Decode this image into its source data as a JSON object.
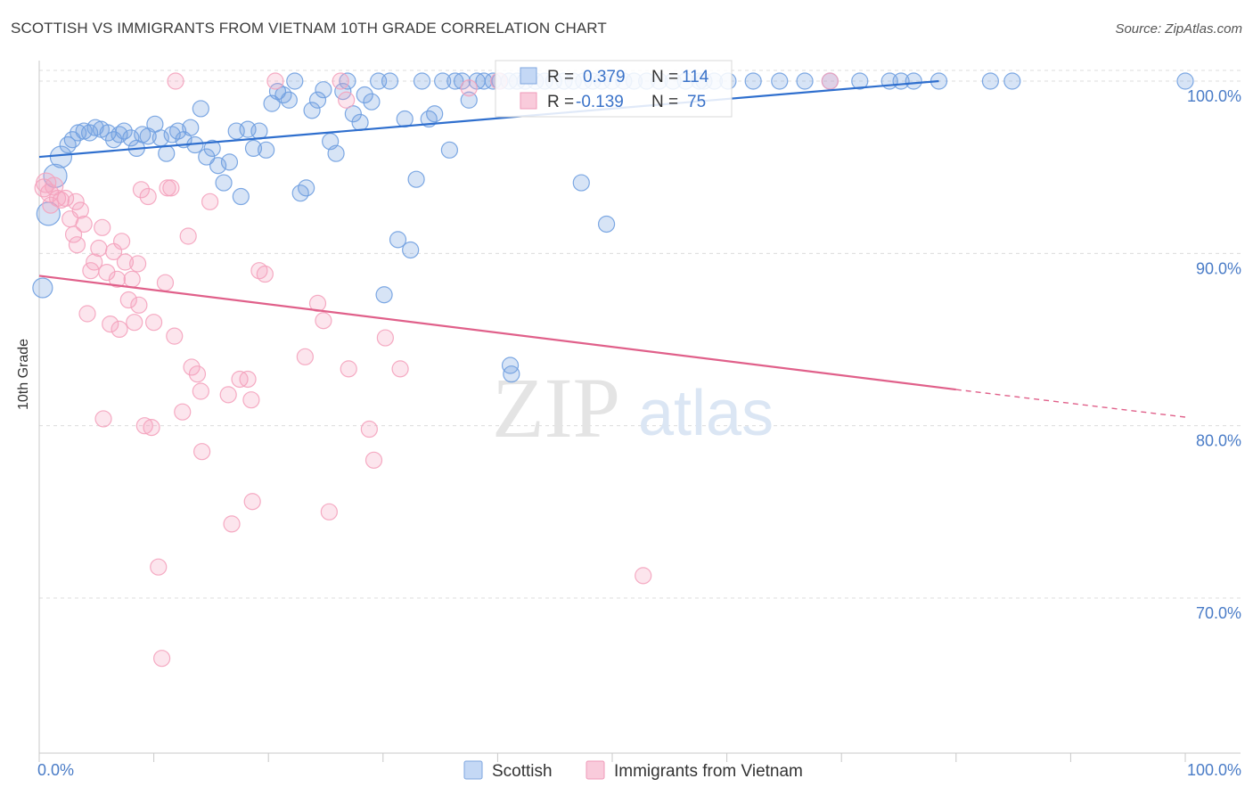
{
  "title": "SCOTTISH VS IMMIGRANTS FROM VIETNAM 10TH GRADE CORRELATION CHART",
  "source": "Source: ZipAtlas.com",
  "watermark": {
    "zip": "ZIP",
    "atlas": "atlas"
  },
  "chart_data": {
    "type": "scatter",
    "title": "SCOTTISH VS IMMIGRANTS FROM VIETNAM 10TH GRADE CORRELATION CHART",
    "xlabel": "",
    "ylabel": "10th Grade",
    "xlim": [
      0,
      100
    ],
    "ylim": [
      61,
      101.5
    ],
    "x_tick_labels": [
      "0.0%",
      "100.0%"
    ],
    "y_ticks": [
      70,
      80,
      90,
      100
    ],
    "y_tick_labels": [
      "70.0%",
      "80.0%",
      "90.0%",
      "100.0%"
    ],
    "grid": true,
    "legend_position": "bottom",
    "stats_box": [
      {
        "r_label": "R =",
        "r_value": "0.379",
        "n_label": "N =",
        "n_value": "114"
      },
      {
        "r_label": "R =",
        "r_value": "-0.139",
        "n_label": "N =",
        "n_value": "75"
      }
    ],
    "series": [
      {
        "name": "Scottish",
        "color": "#6f9fe0",
        "line_color": "#2f6fce",
        "trend": {
          "x0": 0,
          "y0": 95.6,
          "x1": 78.5,
          "y1": 100.0,
          "dashed_to": null
        },
        "points": [
          [
            0.3,
            88.0
          ],
          [
            0.8,
            92.3
          ],
          [
            1.4,
            94.5
          ],
          [
            1.9,
            95.6
          ],
          [
            2.5,
            96.3
          ],
          [
            2.9,
            96.6
          ],
          [
            3.4,
            97.0
          ],
          [
            3.9,
            97.1
          ],
          [
            4.4,
            97.0
          ],
          [
            4.9,
            97.3
          ],
          [
            5.4,
            97.2
          ],
          [
            6.0,
            97.0
          ],
          [
            6.5,
            96.6
          ],
          [
            7.0,
            96.9
          ],
          [
            7.4,
            97.1
          ],
          [
            8.0,
            96.7
          ],
          [
            8.5,
            96.1
          ],
          [
            9.0,
            96.9
          ],
          [
            9.5,
            96.8
          ],
          [
            10.1,
            97.5
          ],
          [
            10.6,
            96.7
          ],
          [
            11.1,
            95.8
          ],
          [
            11.6,
            96.9
          ],
          [
            12.1,
            97.1
          ],
          [
            12.6,
            96.6
          ],
          [
            13.2,
            97.3
          ],
          [
            13.6,
            96.3
          ],
          [
            14.1,
            98.4
          ],
          [
            14.6,
            95.6
          ],
          [
            15.1,
            96.1
          ],
          [
            15.6,
            95.1
          ],
          [
            16.1,
            94.1
          ],
          [
            16.6,
            95.3
          ],
          [
            17.2,
            97.1
          ],
          [
            17.6,
            93.3
          ],
          [
            18.2,
            97.2
          ],
          [
            18.7,
            96.1
          ],
          [
            19.2,
            97.1
          ],
          [
            19.8,
            96.0
          ],
          [
            20.3,
            98.7
          ],
          [
            20.8,
            99.4
          ],
          [
            21.3,
            99.2
          ],
          [
            21.8,
            98.9
          ],
          [
            22.3,
            100.0
          ],
          [
            22.8,
            93.5
          ],
          [
            23.3,
            93.8
          ],
          [
            23.8,
            98.3
          ],
          [
            24.3,
            98.9
          ],
          [
            24.8,
            99.5
          ],
          [
            25.4,
            96.5
          ],
          [
            25.9,
            95.8
          ],
          [
            26.5,
            99.4
          ],
          [
            26.9,
            100.0
          ],
          [
            27.4,
            98.1
          ],
          [
            28.0,
            97.6
          ],
          [
            28.4,
            99.2
          ],
          [
            29.0,
            98.8
          ],
          [
            29.6,
            100.0
          ],
          [
            30.1,
            87.6
          ],
          [
            30.6,
            100.0
          ],
          [
            31.3,
            90.8
          ],
          [
            31.9,
            97.8
          ],
          [
            32.4,
            90.2
          ],
          [
            32.9,
            94.3
          ],
          [
            33.4,
            100.0
          ],
          [
            34.0,
            97.8
          ],
          [
            34.5,
            98.1
          ],
          [
            35.2,
            100.0
          ],
          [
            35.8,
            96.0
          ],
          [
            36.3,
            100.0
          ],
          [
            36.9,
            100.0
          ],
          [
            37.5,
            98.9
          ],
          [
            38.2,
            100.0
          ],
          [
            38.8,
            100.0
          ],
          [
            39.6,
            100.0
          ],
          [
            40.2,
            100.0
          ],
          [
            41.0,
            100.0
          ],
          [
            41.7,
            100.0
          ],
          [
            41.1,
            83.5
          ],
          [
            41.2,
            83.0
          ],
          [
            42.4,
            100.0
          ],
          [
            43.3,
            100.0
          ],
          [
            44.1,
            100.0
          ],
          [
            44.9,
            100.0
          ],
          [
            45.8,
            100.0
          ],
          [
            46.6,
            100.0
          ],
          [
            47.5,
            100.0
          ],
          [
            47.3,
            94.1
          ],
          [
            48.3,
            100.0
          ],
          [
            49.1,
            100.0
          ],
          [
            49.5,
            91.7
          ],
          [
            50.0,
            100.0
          ],
          [
            51.0,
            100.0
          ],
          [
            51.9,
            100.0
          ],
          [
            53.0,
            100.0
          ],
          [
            54.1,
            100.0
          ],
          [
            55.3,
            100.0
          ],
          [
            56.4,
            100.0
          ],
          [
            57.6,
            100.0
          ],
          [
            58.9,
            100.0
          ],
          [
            60.1,
            100.0
          ],
          [
            62.3,
            100.0
          ],
          [
            64.6,
            100.0
          ],
          [
            66.8,
            100.0
          ],
          [
            69.0,
            100.0
          ],
          [
            71.6,
            100.0
          ],
          [
            74.2,
            100.0
          ],
          [
            75.2,
            100.0
          ],
          [
            76.3,
            100.0
          ],
          [
            78.5,
            100.0
          ],
          [
            83.0,
            100.0
          ],
          [
            84.9,
            100.0
          ],
          [
            100.0,
            100.0
          ],
          [
            58.0,
            100.0
          ]
        ]
      },
      {
        "name": "Immigrants from Vietnam",
        "color": "#f4a2bd",
        "line_color": "#e0608a",
        "trend": {
          "x0": 0,
          "y0": 88.7,
          "x1": 80.0,
          "y1": 82.1,
          "dashed_to": {
            "x": 100,
            "y": 80.5
          }
        },
        "points": [
          [
            0.4,
            93.8
          ],
          [
            0.6,
            94.1
          ],
          [
            0.9,
            93.5
          ],
          [
            1.3,
            93.9
          ],
          [
            1.6,
            93.2
          ],
          [
            1.9,
            93.1
          ],
          [
            2.3,
            93.2
          ],
          [
            2.7,
            92.0
          ],
          [
            3.0,
            91.1
          ],
          [
            3.3,
            90.5
          ],
          [
            3.6,
            92.5
          ],
          [
            3.9,
            91.7
          ],
          [
            4.2,
            86.5
          ],
          [
            4.5,
            89.0
          ],
          [
            4.8,
            89.5
          ],
          [
            5.2,
            90.3
          ],
          [
            5.5,
            91.5
          ],
          [
            5.6,
            80.4
          ],
          [
            5.9,
            88.9
          ],
          [
            6.2,
            85.9
          ],
          [
            6.5,
            90.1
          ],
          [
            6.8,
            88.5
          ],
          [
            7.0,
            85.6
          ],
          [
            7.2,
            90.7
          ],
          [
            7.5,
            89.5
          ],
          [
            7.8,
            87.3
          ],
          [
            8.1,
            88.5
          ],
          [
            8.3,
            86.0
          ],
          [
            8.6,
            89.4
          ],
          [
            8.7,
            87.0
          ],
          [
            8.9,
            93.7
          ],
          [
            9.2,
            80.0
          ],
          [
            9.5,
            93.3
          ],
          [
            9.8,
            79.9
          ],
          [
            10.0,
            86.0
          ],
          [
            10.4,
            71.8
          ],
          [
            10.7,
            66.5
          ],
          [
            11.0,
            88.3
          ],
          [
            11.2,
            93.8
          ],
          [
            11.5,
            93.8
          ],
          [
            11.8,
            85.2
          ],
          [
            12.5,
            80.8
          ],
          [
            13.0,
            91.0
          ],
          [
            13.3,
            83.4
          ],
          [
            13.8,
            83.0
          ],
          [
            14.1,
            82.0
          ],
          [
            14.2,
            78.5
          ],
          [
            14.9,
            93.0
          ],
          [
            16.5,
            81.8
          ],
          [
            16.8,
            74.3
          ],
          [
            17.5,
            82.7
          ],
          [
            18.2,
            82.7
          ],
          [
            18.5,
            81.5
          ],
          [
            18.6,
            75.6
          ],
          [
            19.2,
            89.0
          ],
          [
            19.7,
            88.8
          ],
          [
            20.6,
            100.0
          ],
          [
            23.2,
            84.0
          ],
          [
            24.3,
            87.1
          ],
          [
            24.8,
            86.1
          ],
          [
            25.3,
            75.0
          ],
          [
            26.3,
            100.0
          ],
          [
            26.8,
            98.9
          ],
          [
            27.0,
            83.3
          ],
          [
            28.8,
            79.8
          ],
          [
            29.2,
            78.0
          ],
          [
            30.2,
            85.1
          ],
          [
            31.5,
            83.3
          ],
          [
            11.9,
            100.0
          ],
          [
            37.5,
            99.6
          ],
          [
            52.7,
            71.3
          ],
          [
            69.0,
            100.0
          ],
          [
            40.1,
            100.0
          ],
          [
            3.2,
            93.0
          ],
          [
            1.0,
            92.8
          ]
        ]
      }
    ]
  },
  "legend": {
    "items": [
      {
        "label": "Scottish",
        "fill": "#c4d8f5",
        "stroke": "#7ea6df"
      },
      {
        "label": "Immigrants from Vietnam",
        "fill": "#f9cbdb",
        "stroke": "#ef9ab8"
      }
    ]
  }
}
